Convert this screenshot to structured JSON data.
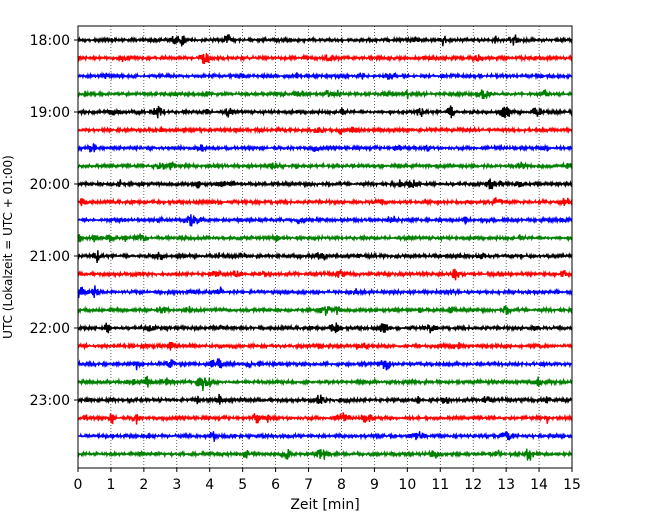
{
  "chart_data": {
    "type": "line",
    "title": "",
    "xlabel": "Zeit  [min]",
    "ylabel": "UTC (Lokalzeit = UTC + 01:00)",
    "xlim": [
      0,
      15
    ],
    "x_ticks": [
      0,
      1,
      2,
      3,
      4,
      5,
      6,
      7,
      8,
      9,
      10,
      11,
      12,
      13,
      14,
      15
    ],
    "x_tick_labels": [
      "0",
      "1",
      "2",
      "3",
      "4",
      "5",
      "6",
      "7",
      "8",
      "9",
      "10",
      "11",
      "12",
      "13",
      "14",
      "15"
    ],
    "y_tick_labels": [
      "18:00",
      "19:00",
      "20:00",
      "21:00",
      "22:00",
      "23:00"
    ],
    "y_tick_rows": [
      0,
      4,
      8,
      12,
      16,
      20
    ],
    "vertical_gridlines": "dotted",
    "color_cycle": [
      "#000000",
      "#ff0000",
      "#0000ff",
      "#008000"
    ],
    "traces": [
      {
        "start": "18:00",
        "color": "#000000"
      },
      {
        "start": "18:15",
        "color": "#ff0000"
      },
      {
        "start": "18:30",
        "color": "#0000ff"
      },
      {
        "start": "18:45",
        "color": "#008000"
      },
      {
        "start": "19:00",
        "color": "#000000"
      },
      {
        "start": "19:15",
        "color": "#ff0000"
      },
      {
        "start": "19:30",
        "color": "#0000ff"
      },
      {
        "start": "19:45",
        "color": "#008000"
      },
      {
        "start": "20:00",
        "color": "#000000"
      },
      {
        "start": "20:15",
        "color": "#ff0000"
      },
      {
        "start": "20:30",
        "color": "#0000ff"
      },
      {
        "start": "20:45",
        "color": "#008000"
      },
      {
        "start": "21:00",
        "color": "#000000"
      },
      {
        "start": "21:15",
        "color": "#ff0000"
      },
      {
        "start": "21:30",
        "color": "#0000ff"
      },
      {
        "start": "21:45",
        "color": "#008000"
      },
      {
        "start": "22:00",
        "color": "#000000"
      },
      {
        "start": "22:15",
        "color": "#ff0000"
      },
      {
        "start": "22:30",
        "color": "#0000ff"
      },
      {
        "start": "22:45",
        "color": "#008000"
      },
      {
        "start": "23:00",
        "color": "#000000"
      },
      {
        "start": "23:15",
        "color": "#ff0000"
      },
      {
        "start": "23:30",
        "color": "#0000ff"
      },
      {
        "start": "23:45",
        "color": "#008000"
      }
    ]
  }
}
